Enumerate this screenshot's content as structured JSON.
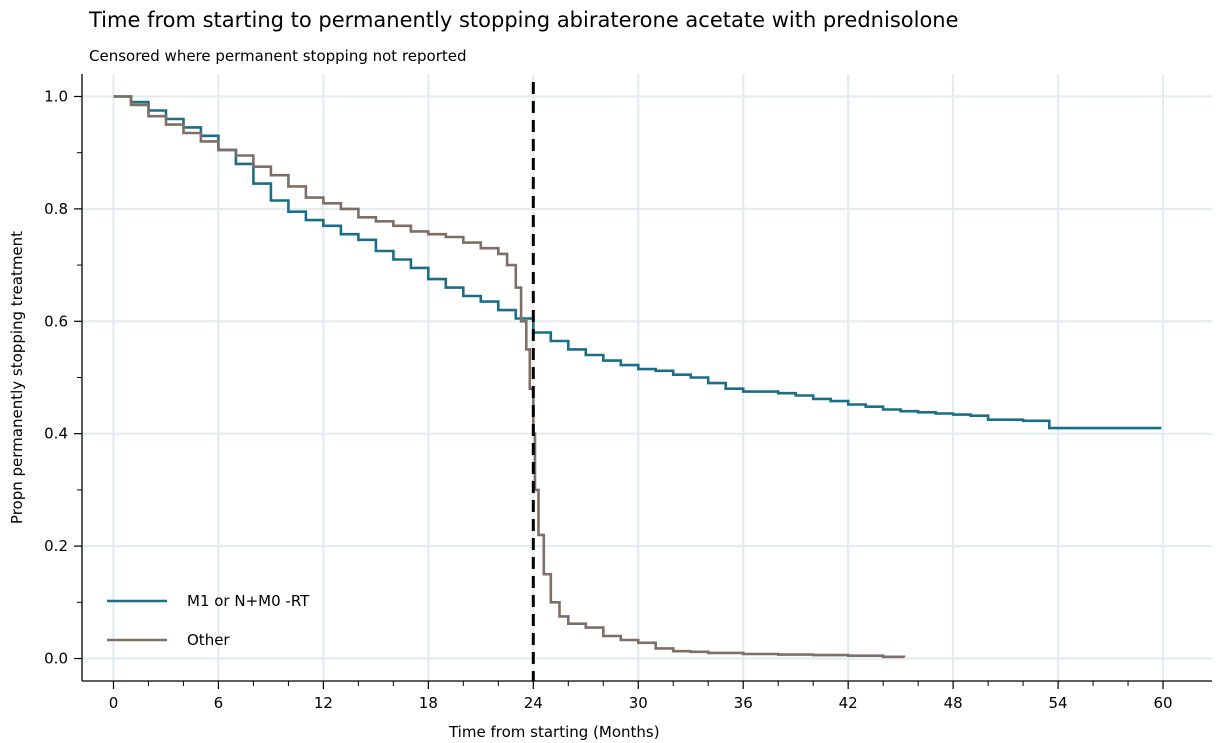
{
  "chart_data": {
    "type": "line",
    "title": "Time from starting to permanently stopping abiraterone acetate with prednisolone",
    "subtitle": "Censored where permanent stopping not reported",
    "xlabel": "Time from starting (Months)",
    "ylabel": "Propn permanently stopping treatment",
    "xlim": [
      -1.8,
      62.8
    ],
    "ylim": [
      -0.04,
      1.04
    ],
    "x_ticks": [
      0,
      6,
      12,
      18,
      24,
      30,
      36,
      42,
      48,
      54,
      60
    ],
    "x_tick_labels": [
      "0",
      "6",
      "12",
      "18",
      "24",
      "30",
      "36",
      "42",
      "48",
      "54",
      "60"
    ],
    "y_ticks": [
      0.0,
      0.2,
      0.4,
      0.6,
      0.8,
      1.0
    ],
    "y_tick_labels": [
      "0.0",
      "0.2",
      "0.4",
      "0.6",
      "0.8",
      "1.0"
    ],
    "grid": true,
    "legend_position": "bottom-left",
    "reference_line": {
      "x": 24,
      "style": "dashed",
      "color": "#000000"
    },
    "series": [
      {
        "name": "M1 or N+M0 -RT",
        "color": "#1a6f86",
        "step": true,
        "x": [
          0,
          1,
          2,
          3,
          4,
          5,
          6,
          7,
          8,
          9,
          10,
          11,
          12,
          13,
          14,
          15,
          16,
          17,
          18,
          19,
          20,
          21,
          22,
          23,
          24,
          25,
          26,
          27,
          28,
          29,
          30,
          31,
          32,
          33,
          34,
          35,
          36,
          37,
          38,
          39,
          40,
          41,
          42,
          43,
          44,
          45,
          46,
          47,
          48,
          49,
          50,
          51,
          52,
          53,
          53.5,
          54,
          56,
          58,
          59.9
        ],
        "y": [
          1.0,
          0.99,
          0.975,
          0.96,
          0.945,
          0.93,
          0.905,
          0.88,
          0.845,
          0.815,
          0.795,
          0.78,
          0.77,
          0.755,
          0.745,
          0.725,
          0.71,
          0.695,
          0.675,
          0.66,
          0.645,
          0.635,
          0.62,
          0.605,
          0.58,
          0.565,
          0.55,
          0.54,
          0.53,
          0.522,
          0.515,
          0.512,
          0.505,
          0.5,
          0.49,
          0.48,
          0.475,
          0.475,
          0.472,
          0.468,
          0.462,
          0.458,
          0.452,
          0.448,
          0.443,
          0.44,
          0.438,
          0.436,
          0.434,
          0.432,
          0.425,
          0.425,
          0.423,
          0.423,
          0.41,
          0.41,
          0.41,
          0.41,
          0.41
        ]
      },
      {
        "name": "Other",
        "color": "#7d6e66",
        "step": true,
        "x": [
          0,
          1,
          2,
          3,
          4,
          5,
          6,
          7,
          8,
          9,
          10,
          11,
          12,
          13,
          14,
          15,
          16,
          17,
          18,
          19,
          20,
          21,
          22,
          22.5,
          23,
          23.3,
          23.6,
          23.8,
          24,
          24.1,
          24.3,
          24.6,
          25,
          25.5,
          26,
          27,
          28,
          29,
          30,
          31,
          32,
          33,
          34,
          36,
          38,
          40,
          42,
          44,
          45.2
        ],
        "y": [
          1.0,
          0.985,
          0.965,
          0.95,
          0.935,
          0.92,
          0.905,
          0.895,
          0.875,
          0.86,
          0.84,
          0.82,
          0.81,
          0.8,
          0.785,
          0.778,
          0.77,
          0.76,
          0.755,
          0.75,
          0.74,
          0.73,
          0.72,
          0.7,
          0.66,
          0.6,
          0.55,
          0.48,
          0.4,
          0.3,
          0.22,
          0.15,
          0.1,
          0.075,
          0.062,
          0.055,
          0.04,
          0.033,
          0.028,
          0.018,
          0.013,
          0.012,
          0.01,
          0.008,
          0.007,
          0.006,
          0.005,
          0.003,
          0.002
        ]
      }
    ]
  }
}
